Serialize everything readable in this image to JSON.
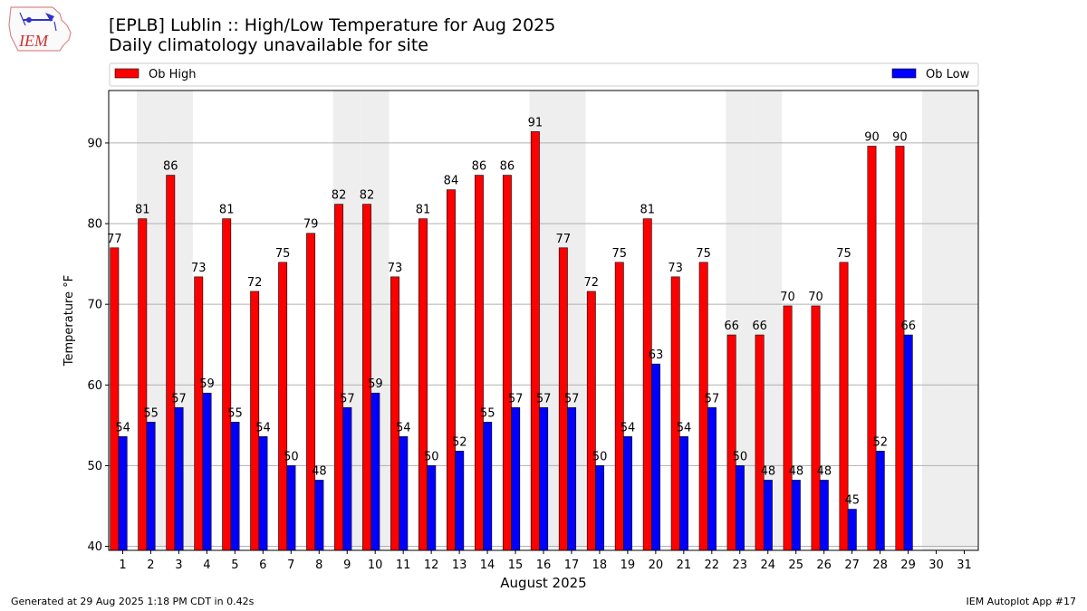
{
  "header": {
    "title": "[EPLB] Lublin :: High/Low Temperature for Aug 2025",
    "subtitle": "Daily climatology unavailable for site",
    "logo_text": "IEM"
  },
  "footer": {
    "left": "Generated at 29 Aug 2025 1:18 PM CDT in 0.42s",
    "right": "IEM Autoplot App #17"
  },
  "colors": {
    "high": "#ff0000",
    "low": "#0000ff",
    "weekend": "#eeeeee",
    "grid": "#b0b0b0"
  },
  "chart_data": {
    "type": "bar",
    "xlabel": "August 2025",
    "ylabel": "Temperature °F",
    "ylim": [
      39.5,
      96.5
    ],
    "yticks": [
      40,
      50,
      60,
      70,
      80,
      90
    ],
    "categories": [
      "1",
      "2",
      "3",
      "4",
      "5",
      "6",
      "7",
      "8",
      "9",
      "10",
      "11",
      "12",
      "13",
      "14",
      "15",
      "16",
      "17",
      "18",
      "19",
      "20",
      "21",
      "22",
      "23",
      "24",
      "25",
      "26",
      "27",
      "28",
      "29",
      "30",
      "31"
    ],
    "weekend_days": [
      2,
      3,
      9,
      10,
      16,
      17,
      23,
      24,
      30,
      31
    ],
    "grid": true,
    "legend_position": "top",
    "series": [
      {
        "name": "Ob High",
        "color": "#ff0000",
        "values": [
          77,
          81,
          86,
          73,
          81,
          72,
          75,
          79,
          82,
          82,
          73,
          81,
          84,
          86,
          86,
          91,
          77,
          72,
          75,
          81,
          73,
          75,
          66,
          66,
          70,
          70,
          75,
          90,
          90,
          null,
          null
        ],
        "plotted": [
          77,
          80.6,
          86,
          73.4,
          80.6,
          71.6,
          75.2,
          78.8,
          82.4,
          82.4,
          73.4,
          80.6,
          84.2,
          86,
          86,
          91.4,
          77,
          71.6,
          75.2,
          80.6,
          73.4,
          75.2,
          66.2,
          66.2,
          69.8,
          69.8,
          75.2,
          89.6,
          89.6,
          null,
          null
        ]
      },
      {
        "name": "Ob Low",
        "color": "#0000ff",
        "values": [
          54,
          55,
          57,
          59,
          55,
          54,
          50,
          48,
          57,
          59,
          54,
          50,
          52,
          55,
          57,
          57,
          57,
          50,
          54,
          63,
          54,
          57,
          50,
          48,
          48,
          48,
          45,
          52,
          66,
          null,
          null
        ],
        "plotted": [
          53.6,
          55.4,
          57.2,
          59,
          55.4,
          53.6,
          50,
          48.2,
          57.2,
          59,
          53.6,
          50,
          51.8,
          55.4,
          57.2,
          57.2,
          57.2,
          50,
          53.6,
          62.6,
          53.6,
          57.2,
          50,
          48.2,
          48.2,
          48.2,
          44.6,
          51.8,
          66.2,
          null,
          null
        ]
      }
    ]
  }
}
